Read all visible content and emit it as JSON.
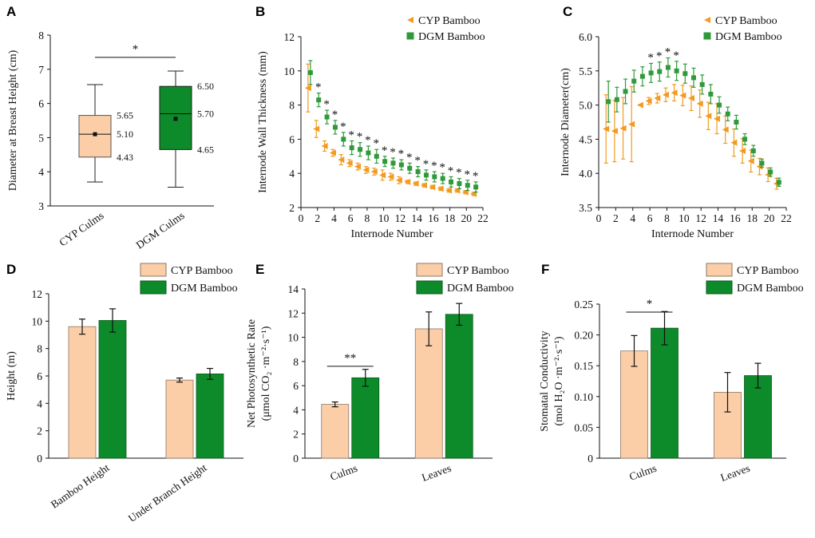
{
  "colors": {
    "cyp_fill": "#FBCEA8",
    "cyp_stroke": "#8B7765",
    "cyp_marker": "#F39A1F",
    "dgm_fill": "#0D8A2A",
    "dgm_stroke": "#0A5A1A",
    "dgm_marker": "#2F9A3A"
  },
  "chart_data": [
    {
      "id": "A",
      "type": "box",
      "panel_letter": "A",
      "title": "",
      "xlabel": "",
      "ylabel": "Diameter at Breast Height (cm)",
      "ylim": [
        3,
        8
      ],
      "yticks": [
        "3",
        "4",
        "5",
        "6",
        "7",
        "8"
      ],
      "categories": [
        "CYP Culms",
        "DGM Culms"
      ],
      "boxes": [
        {
          "name": "CYP Culms",
          "min": 3.7,
          "q1": 4.43,
          "median": 5.1,
          "q3": 5.65,
          "max": 6.55,
          "mean": 5.1,
          "labels": {
            "q3": "5.65",
            "median": "5.10",
            "q1": "4.43"
          }
        },
        {
          "name": "DGM Culms",
          "min": 3.55,
          "q1": 4.65,
          "median": 5.7,
          "q3": 6.5,
          "max": 6.95,
          "mean": 5.55,
          "labels": {
            "q3": "6.50",
            "median": "5.70",
            "q1": "4.65"
          }
        }
      ],
      "significance": [
        {
          "label": "*",
          "from": 0,
          "to": 1,
          "level": 7.35
        }
      ]
    },
    {
      "id": "B",
      "type": "scatter",
      "panel_letter": "B",
      "title": "",
      "xlabel": "Internode Number",
      "ylabel": "Internode Wall Thickness (mm)",
      "xlim": [
        0,
        22
      ],
      "ylim": [
        2,
        12
      ],
      "xticks": [
        "0",
        "2",
        "4",
        "6",
        "8",
        "10",
        "12",
        "14",
        "16",
        "18",
        "20",
        "22"
      ],
      "yticks": [
        "2",
        "4",
        "6",
        "8",
        "10",
        "12"
      ],
      "legend": [
        "CYP Bamboo",
        "DGM Bamboo"
      ],
      "x": [
        1,
        2,
        3,
        4,
        5,
        6,
        7,
        8,
        9,
        10,
        11,
        12,
        13,
        14,
        15,
        16,
        17,
        18,
        19,
        20,
        21
      ],
      "series": [
        {
          "name": "CYP Bamboo",
          "values": [
            9.0,
            6.6,
            5.6,
            5.2,
            4.8,
            4.6,
            4.4,
            4.2,
            4.1,
            3.9,
            3.8,
            3.6,
            3.5,
            3.4,
            3.3,
            3.2,
            3.1,
            3.0,
            3.0,
            2.9,
            2.8
          ],
          "errors": [
            1.4,
            0.5,
            0.3,
            0.2,
            0.3,
            0.2,
            0.2,
            0.2,
            0.2,
            0.3,
            0.2,
            0.2,
            0.1,
            0.1,
            0.1,
            0.1,
            0.1,
            0.1,
            0.1,
            0.1,
            0.1
          ]
        },
        {
          "name": "DGM Bamboo",
          "values": [
            9.9,
            8.3,
            7.3,
            6.7,
            6.0,
            5.5,
            5.4,
            5.2,
            5.0,
            4.7,
            4.6,
            4.5,
            4.3,
            4.1,
            3.9,
            3.8,
            3.7,
            3.5,
            3.4,
            3.3,
            3.2
          ],
          "errors": [
            0.7,
            0.4,
            0.4,
            0.4,
            0.4,
            0.4,
            0.4,
            0.4,
            0.4,
            0.3,
            0.3,
            0.3,
            0.3,
            0.3,
            0.3,
            0.3,
            0.3,
            0.3,
            0.3,
            0.3,
            0.3
          ]
        }
      ],
      "significance_marks": [
        {
          "x": 2,
          "label": "*"
        },
        {
          "x": 3,
          "label": "*"
        },
        {
          "x": 4,
          "label": "*"
        },
        {
          "x": 5,
          "label": "*"
        },
        {
          "x": 6,
          "label": "*"
        },
        {
          "x": 7,
          "label": "*"
        },
        {
          "x": 8,
          "label": "*"
        },
        {
          "x": 9,
          "label": "*"
        },
        {
          "x": 10,
          "label": "*"
        },
        {
          "x": 11,
          "label": "*"
        },
        {
          "x": 12,
          "label": "*"
        },
        {
          "x": 13,
          "label": "*"
        },
        {
          "x": 14,
          "label": "*"
        },
        {
          "x": 15,
          "label": "*"
        },
        {
          "x": 16,
          "label": "*"
        },
        {
          "x": 17,
          "label": "*"
        },
        {
          "x": 18,
          "label": "*"
        },
        {
          "x": 19,
          "label": "*"
        },
        {
          "x": 20,
          "label": "*"
        },
        {
          "x": 21,
          "label": "*"
        }
      ]
    },
    {
      "id": "C",
      "type": "scatter",
      "panel_letter": "C",
      "title": "",
      "xlabel": "Internode Number",
      "ylabel": "Internode Diameter(cm)",
      "xlim": [
        0,
        22
      ],
      "ylim": [
        3.5,
        6.0
      ],
      "xticks": [
        "0",
        "2",
        "4",
        "6",
        "8",
        "10",
        "12",
        "14",
        "16",
        "18",
        "20",
        "22"
      ],
      "yticks": [
        "3.5",
        "4.0",
        "4.5",
        "5.0",
        "5.5",
        "6.0"
      ],
      "legend": [
        "CYP Bamboo",
        "DGM Bamboo"
      ],
      "x": [
        1,
        2,
        3,
        4,
        5,
        6,
        7,
        8,
        9,
        10,
        11,
        12,
        13,
        14,
        15,
        16,
        17,
        18,
        19,
        20,
        21
      ],
      "series": [
        {
          "name": "CYP Bamboo",
          "values": [
            4.65,
            4.62,
            4.66,
            4.72,
            5.0,
            5.06,
            5.1,
            5.15,
            5.18,
            5.14,
            5.1,
            5.02,
            4.84,
            4.8,
            4.64,
            4.45,
            4.33,
            4.18,
            4.1,
            3.98,
            3.85
          ],
          "errors": [
            0.5,
            0.45,
            0.45,
            0.55,
            0.0,
            0.05,
            0.07,
            0.1,
            0.12,
            0.15,
            0.18,
            0.2,
            0.2,
            0.22,
            0.2,
            0.2,
            0.18,
            0.16,
            0.12,
            0.1,
            0.08
          ]
        },
        {
          "name": "DGM Bamboo",
          "values": [
            5.05,
            5.08,
            5.2,
            5.35,
            5.42,
            5.47,
            5.49,
            5.55,
            5.5,
            5.46,
            5.4,
            5.3,
            5.16,
            5.0,
            4.87,
            4.75,
            4.5,
            4.33,
            4.15,
            4.02,
            3.87
          ],
          "errors": [
            0.3,
            0.18,
            0.18,
            0.16,
            0.14,
            0.14,
            0.14,
            0.14,
            0.14,
            0.14,
            0.14,
            0.14,
            0.14,
            0.12,
            0.1,
            0.1,
            0.08,
            0.08,
            0.06,
            0.06,
            0.06
          ]
        }
      ],
      "significance_marks": [
        {
          "x": 6,
          "label": "*"
        },
        {
          "x": 7,
          "label": "*"
        },
        {
          "x": 8,
          "label": "*"
        },
        {
          "x": 9,
          "label": "*"
        }
      ]
    },
    {
      "id": "D",
      "type": "bar",
      "panel_letter": "D",
      "title": "",
      "xlabel": "",
      "ylabel": "Height (m)",
      "ylim": [
        0,
        12
      ],
      "yticks": [
        "0",
        "2",
        "4",
        "6",
        "8",
        "10",
        "12"
      ],
      "legend": [
        "CYP Bamboo",
        "DGM Bamboo"
      ],
      "categories": [
        "Bamboo Height",
        "Under Branch Height"
      ],
      "series": [
        {
          "name": "CYP Bamboo",
          "values": [
            9.6,
            5.7
          ],
          "errors": [
            0.55,
            0.15
          ]
        },
        {
          "name": "DGM Bamboo",
          "values": [
            10.05,
            6.15
          ],
          "errors": [
            0.85,
            0.4
          ]
        }
      ],
      "significance": []
    },
    {
      "id": "E",
      "type": "bar",
      "panel_letter": "E",
      "title": "",
      "xlabel": "",
      "ylabel_line1": "Net Photosynthetic Rate",
      "ylabel_line2": "(μmol CO₂ ·m⁻²·s⁻¹)",
      "ylim": [
        0,
        14
      ],
      "yticks": [
        "0",
        "2",
        "4",
        "6",
        "8",
        "10",
        "12",
        "14"
      ],
      "legend": [
        "CYP Bamboo",
        "DGM Bamboo"
      ],
      "categories": [
        "Culms",
        "Leaves"
      ],
      "series": [
        {
          "name": "CYP Bamboo",
          "values": [
            4.45,
            10.7
          ],
          "errors": [
            0.2,
            1.4
          ]
        },
        {
          "name": "DGM Bamboo",
          "values": [
            6.65,
            11.9
          ],
          "errors": [
            0.7,
            0.9
          ]
        }
      ],
      "significance": [
        {
          "label": "**",
          "category": 0,
          "level": 7.6
        }
      ]
    },
    {
      "id": "F",
      "type": "bar",
      "panel_letter": "F",
      "title": "",
      "xlabel": "",
      "ylabel_line1": "Stomatal Conductivity",
      "ylabel_line2": "(mol H₂O ·m⁻²·s⁻¹)",
      "ylim": [
        0,
        0.25
      ],
      "yticks": [
        "0",
        "0.05",
        "0.10",
        "0.15",
        "0.20",
        "0.25"
      ],
      "legend": [
        "CYP Bamboo",
        "DGM Bamboo"
      ],
      "categories": [
        "Culms",
        "Leaves"
      ],
      "series": [
        {
          "name": "CYP Bamboo",
          "values": [
            0.174,
            0.107
          ],
          "errors": [
            0.025,
            0.032
          ]
        },
        {
          "name": "DGM Bamboo",
          "values": [
            0.211,
            0.134
          ],
          "errors": [
            0.027,
            0.02
          ]
        }
      ],
      "significance": [
        {
          "label": "*",
          "category": 0,
          "level": 0.237
        }
      ]
    }
  ]
}
